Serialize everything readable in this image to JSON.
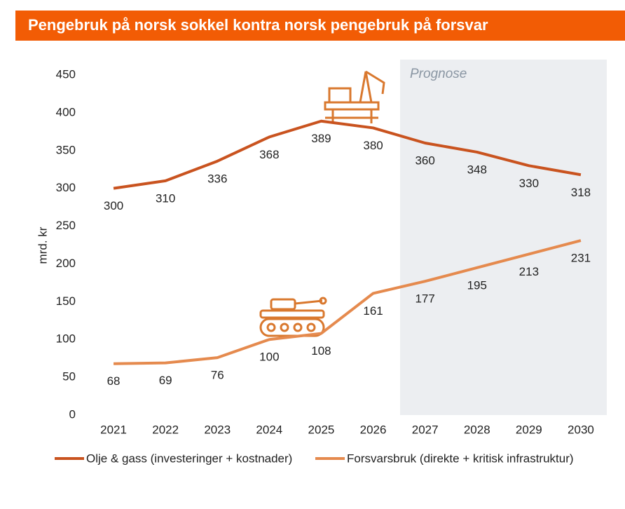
{
  "chart_data": {
    "type": "line",
    "title": "Pengebruk på norsk sokkel kontra norsk pengebruk på forsvar",
    "y_label": "mrd. kr",
    "annotation": "Prognose",
    "categories": [
      "2021",
      "2022",
      "2023",
      "2024",
      "2025",
      "2026",
      "2027",
      "2028",
      "2029",
      "2030"
    ],
    "series": [
      {
        "name": "Olje & gass (investeringer + kostnader)",
        "color": "#c9531f",
        "values": [
          300,
          310,
          336,
          368,
          389,
          380,
          360,
          348,
          330,
          318
        ]
      },
      {
        "name": "Forsvarsbruk (direkte + kritisk infrastruktur)",
        "color": "#e58a4e",
        "values": [
          68,
          69,
          76,
          100,
          108,
          161,
          177,
          195,
          213,
          231
        ]
      }
    ],
    "ylim": [
      0,
      450
    ],
    "yticks": [
      0,
      50,
      100,
      150,
      200,
      250,
      300,
      350,
      400,
      450
    ],
    "grid": false,
    "legend": "bottom"
  }
}
